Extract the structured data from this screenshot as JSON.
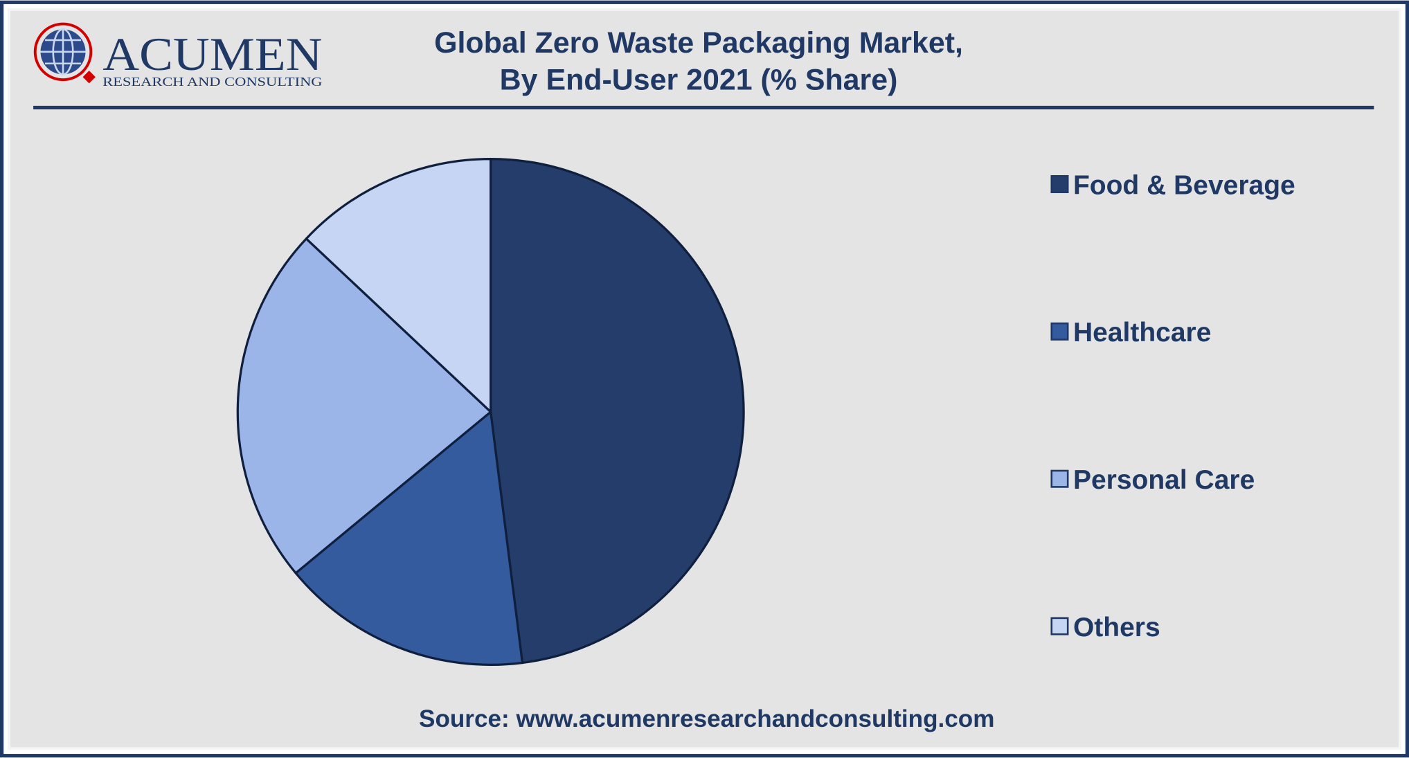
{
  "logo": {
    "name": "ACUMEN",
    "tagline": "RESEARCH AND CONSULTING"
  },
  "chart_data": {
    "type": "pie",
    "title": [
      "Global Zero Waste Packaging Market,",
      "By End-User 2021 (% Share)"
    ],
    "categories": [
      "Food & Beverage",
      "Healthcare",
      "Personal Care",
      "Others"
    ],
    "values": [
      48,
      16,
      23,
      13
    ],
    "colors": [
      "#253d6b",
      "#345b9e",
      "#9bb5e8",
      "#c5d5f3"
    ],
    "legend": "right",
    "source": "Source: www.acumenresearchandconsulting.com"
  }
}
